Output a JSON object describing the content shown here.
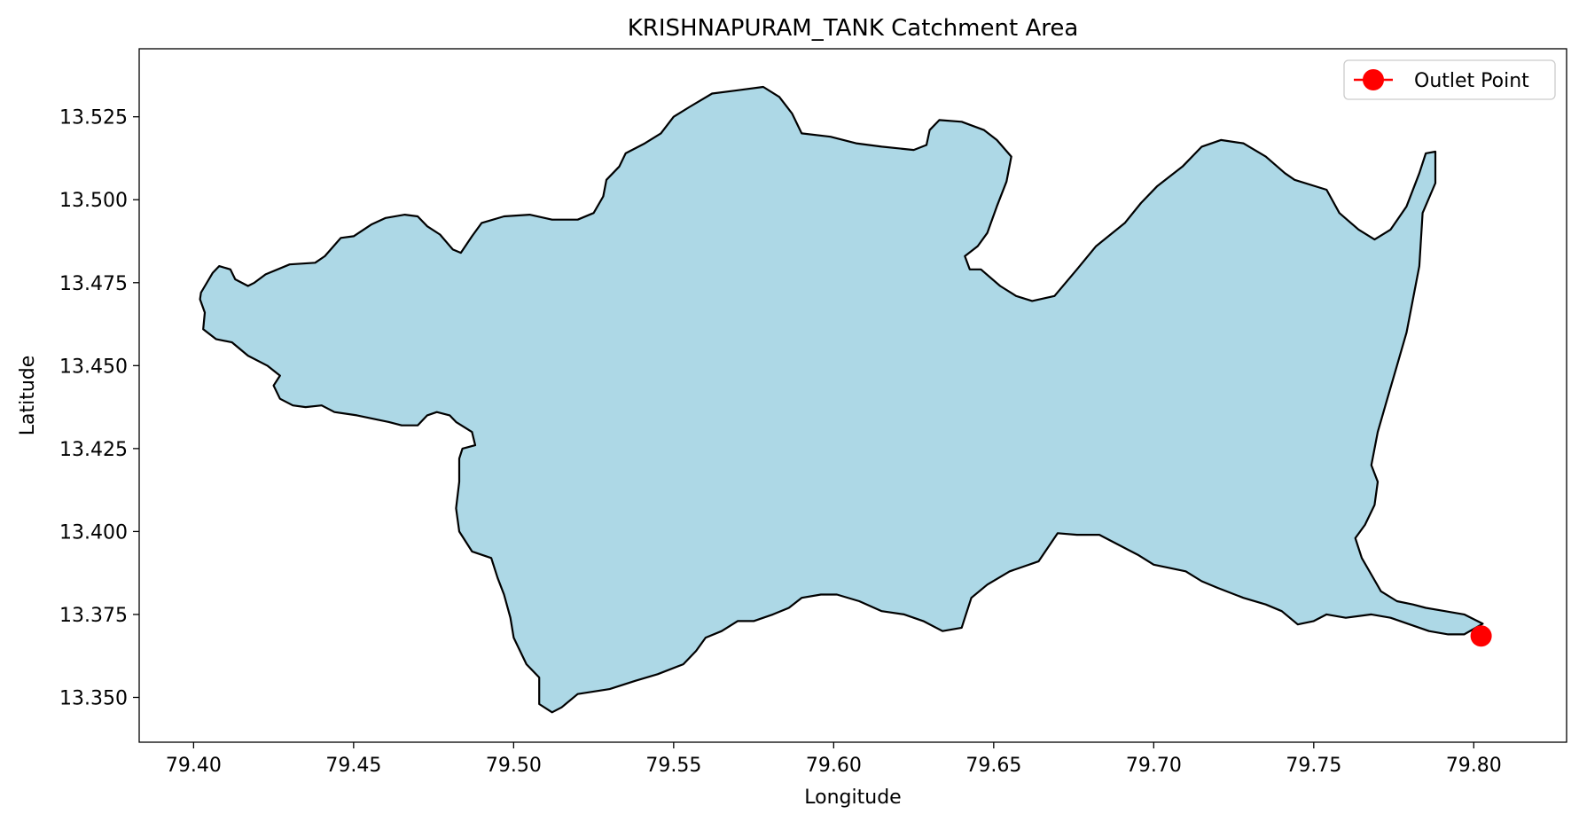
{
  "chart_data": {
    "type": "scatter",
    "title": "KRISHNAPURAM_TANK Catchment Area",
    "xlabel": "Longitude",
    "ylabel": "Latitude",
    "xlim": [
      79.383,
      79.829
    ],
    "ylim": [
      13.3365,
      13.5455
    ],
    "x_ticks": [
      79.4,
      79.45,
      79.5,
      79.55,
      79.6,
      79.65,
      79.7,
      79.75,
      79.8
    ],
    "x_tick_labels": [
      "79.40",
      "79.45",
      "79.50",
      "79.55",
      "79.60",
      "79.65",
      "79.70",
      "79.75",
      "79.80"
    ],
    "y_ticks": [
      13.35,
      13.375,
      13.4,
      13.425,
      13.45,
      13.475,
      13.5,
      13.525
    ],
    "y_tick_labels": [
      "13.350",
      "13.375",
      "13.400",
      "13.425",
      "13.450",
      "13.475",
      "13.500",
      "13.525"
    ],
    "grid": false,
    "legend_position": "top-right",
    "legend": [
      {
        "label": "Outlet Point",
        "color": "#ff0000",
        "marker": "circle"
      }
    ],
    "catchment": {
      "fill": "#add8e6",
      "edge": "#000000",
      "boundary": [
        [
          79.4023,
          13.472
        ],
        [
          79.406,
          13.478
        ],
        [
          79.408,
          13.48
        ],
        [
          79.4115,
          13.479
        ],
        [
          79.413,
          13.476
        ],
        [
          79.417,
          13.474
        ],
        [
          79.419,
          13.475
        ],
        [
          79.4225,
          13.4775
        ],
        [
          79.43,
          13.4805
        ],
        [
          79.438,
          13.481
        ],
        [
          79.441,
          13.483
        ],
        [
          79.446,
          13.4885
        ],
        [
          79.45,
          13.489
        ],
        [
          79.4555,
          13.4925
        ],
        [
          79.46,
          13.4945
        ],
        [
          79.466,
          13.4955
        ],
        [
          79.47,
          13.495
        ],
        [
          79.473,
          13.492
        ],
        [
          79.477,
          13.4895
        ],
        [
          79.481,
          13.485
        ],
        [
          79.4835,
          13.484
        ],
        [
          79.487,
          13.489
        ],
        [
          79.49,
          13.493
        ],
        [
          79.497,
          13.495
        ],
        [
          79.505,
          13.4955
        ],
        [
          79.512,
          13.494
        ],
        [
          79.52,
          13.494
        ],
        [
          79.525,
          13.496
        ],
        [
          79.528,
          13.501
        ],
        [
          79.529,
          13.506
        ],
        [
          79.533,
          13.51
        ],
        [
          79.535,
          13.514
        ],
        [
          79.541,
          13.517
        ],
        [
          79.546,
          13.52
        ],
        [
          79.55,
          13.525
        ],
        [
          79.555,
          13.528
        ],
        [
          79.562,
          13.532
        ],
        [
          79.57,
          13.533
        ],
        [
          79.578,
          13.534
        ],
        [
          79.583,
          13.531
        ],
        [
          79.587,
          13.526
        ],
        [
          79.59,
          13.52
        ],
        [
          79.599,
          13.519
        ],
        [
          79.607,
          13.517
        ],
        [
          79.615,
          13.516
        ],
        [
          79.625,
          13.515
        ],
        [
          79.629,
          13.5165
        ],
        [
          79.63,
          13.521
        ],
        [
          79.633,
          13.524
        ],
        [
          79.64,
          13.5235
        ],
        [
          79.647,
          13.521
        ],
        [
          79.651,
          13.518
        ],
        [
          79.6555,
          13.513
        ],
        [
          79.654,
          13.5055
        ],
        [
          79.651,
          13.498
        ],
        [
          79.648,
          13.49
        ],
        [
          79.645,
          13.486
        ],
        [
          79.641,
          13.483
        ],
        [
          79.6425,
          13.479
        ],
        [
          79.646,
          13.479
        ],
        [
          79.652,
          13.474
        ],
        [
          79.657,
          13.471
        ],
        [
          79.662,
          13.4695
        ],
        [
          79.669,
          13.471
        ],
        [
          79.676,
          13.479
        ],
        [
          79.682,
          13.486
        ],
        [
          79.691,
          13.493
        ],
        [
          79.696,
          13.499
        ],
        [
          79.701,
          13.504
        ],
        [
          79.709,
          13.51
        ],
        [
          79.715,
          13.516
        ],
        [
          79.721,
          13.518
        ],
        [
          79.728,
          13.517
        ],
        [
          79.735,
          13.513
        ],
        [
          79.741,
          13.508
        ],
        [
          79.744,
          13.506
        ],
        [
          79.754,
          13.503
        ],
        [
          79.758,
          13.496
        ],
        [
          79.764,
          13.491
        ],
        [
          79.769,
          13.488
        ],
        [
          79.774,
          13.491
        ],
        [
          79.779,
          13.498
        ],
        [
          79.783,
          13.508
        ],
        [
          79.785,
          13.514
        ],
        [
          79.788,
          13.5145
        ],
        [
          79.788,
          13.505
        ],
        [
          79.784,
          13.496
        ],
        [
          79.783,
          13.48
        ],
        [
          79.781,
          13.47
        ],
        [
          79.779,
          13.46
        ],
        [
          79.776,
          13.45
        ],
        [
          79.773,
          13.44
        ],
        [
          79.77,
          13.43
        ],
        [
          79.768,
          13.42
        ],
        [
          79.77,
          13.415
        ],
        [
          79.769,
          13.408
        ],
        [
          79.766,
          13.402
        ],
        [
          79.763,
          13.398
        ],
        [
          79.765,
          13.392
        ],
        [
          79.768,
          13.387
        ],
        [
          79.771,
          13.382
        ],
        [
          79.776,
          13.379
        ],
        [
          79.781,
          13.378
        ],
        [
          79.785,
          13.377
        ],
        [
          79.791,
          13.376
        ],
        [
          79.797,
          13.375
        ],
        [
          79.8028,
          13.3722
        ],
        [
          79.797,
          13.369
        ],
        [
          79.792,
          13.369
        ],
        [
          79.786,
          13.37
        ],
        [
          79.78,
          13.372
        ],
        [
          79.774,
          13.374
        ],
        [
          79.768,
          13.375
        ],
        [
          79.76,
          13.374
        ],
        [
          79.754,
          13.375
        ],
        [
          79.75,
          13.373
        ],
        [
          79.745,
          13.372
        ],
        [
          79.74,
          13.376
        ],
        [
          79.735,
          13.378
        ],
        [
          79.728,
          13.38
        ],
        [
          79.72,
          13.383
        ],
        [
          79.715,
          13.385
        ],
        [
          79.71,
          13.388
        ],
        [
          79.705,
          13.389
        ],
        [
          79.7,
          13.39
        ],
        [
          79.695,
          13.393
        ],
        [
          79.689,
          13.396
        ],
        [
          79.683,
          13.399
        ],
        [
          79.676,
          13.399
        ],
        [
          79.67,
          13.3995
        ],
        [
          79.664,
          13.391
        ],
        [
          79.655,
          13.388
        ],
        [
          79.648,
          13.384
        ],
        [
          79.643,
          13.38
        ],
        [
          79.641,
          13.374
        ],
        [
          79.64,
          13.371
        ],
        [
          79.634,
          13.37
        ],
        [
          79.628,
          13.373
        ],
        [
          79.622,
          13.375
        ],
        [
          79.615,
          13.376
        ],
        [
          79.608,
          13.379
        ],
        [
          79.601,
          13.381
        ],
        [
          79.596,
          13.381
        ],
        [
          79.59,
          13.38
        ],
        [
          79.586,
          13.377
        ],
        [
          79.581,
          13.375
        ],
        [
          79.575,
          13.373
        ],
        [
          79.57,
          13.373
        ],
        [
          79.565,
          13.37
        ],
        [
          79.56,
          13.368
        ],
        [
          79.557,
          13.364
        ],
        [
          79.553,
          13.36
        ],
        [
          79.545,
          13.357
        ],
        [
          79.538,
          13.355
        ],
        [
          79.53,
          13.3525
        ],
        [
          79.52,
          13.351
        ],
        [
          79.515,
          13.347
        ],
        [
          79.512,
          13.3455
        ],
        [
          79.508,
          13.348
        ],
        [
          79.508,
          13.356
        ],
        [
          79.504,
          13.36
        ],
        [
          79.5,
          13.368
        ],
        [
          79.499,
          13.374
        ],
        [
          79.497,
          13.381
        ],
        [
          79.495,
          13.386
        ],
        [
          79.493,
          13.392
        ],
        [
          79.487,
          13.394
        ],
        [
          79.483,
          13.4
        ],
        [
          79.482,
          13.407
        ],
        [
          79.483,
          13.415
        ],
        [
          79.483,
          13.422
        ],
        [
          79.484,
          13.425
        ],
        [
          79.488,
          13.426
        ],
        [
          79.487,
          13.43
        ],
        [
          79.482,
          13.433
        ],
        [
          79.48,
          13.435
        ],
        [
          79.476,
          13.436
        ],
        [
          79.473,
          13.435
        ],
        [
          79.47,
          13.432
        ],
        [
          79.465,
          13.432
        ],
        [
          79.461,
          13.433
        ],
        [
          79.456,
          13.434
        ],
        [
          79.451,
          13.435
        ],
        [
          79.444,
          13.436
        ],
        [
          79.44,
          13.438
        ],
        [
          79.435,
          13.4375
        ],
        [
          79.431,
          13.438
        ],
        [
          79.427,
          13.44
        ],
        [
          79.425,
          13.444
        ],
        [
          79.427,
          13.447
        ],
        [
          79.423,
          13.45
        ],
        [
          79.417,
          13.453
        ],
        [
          79.412,
          13.457
        ],
        [
          79.407,
          13.458
        ],
        [
          79.403,
          13.461
        ],
        [
          79.4035,
          13.466
        ],
        [
          79.402,
          13.47
        ],
        [
          79.4023,
          13.472
        ]
      ]
    },
    "series": [
      {
        "name": "Outlet Point",
        "color": "#ff0000",
        "marker": "circle",
        "x": [
          79.8023
        ],
        "y": [
          13.3685
        ]
      }
    ]
  }
}
